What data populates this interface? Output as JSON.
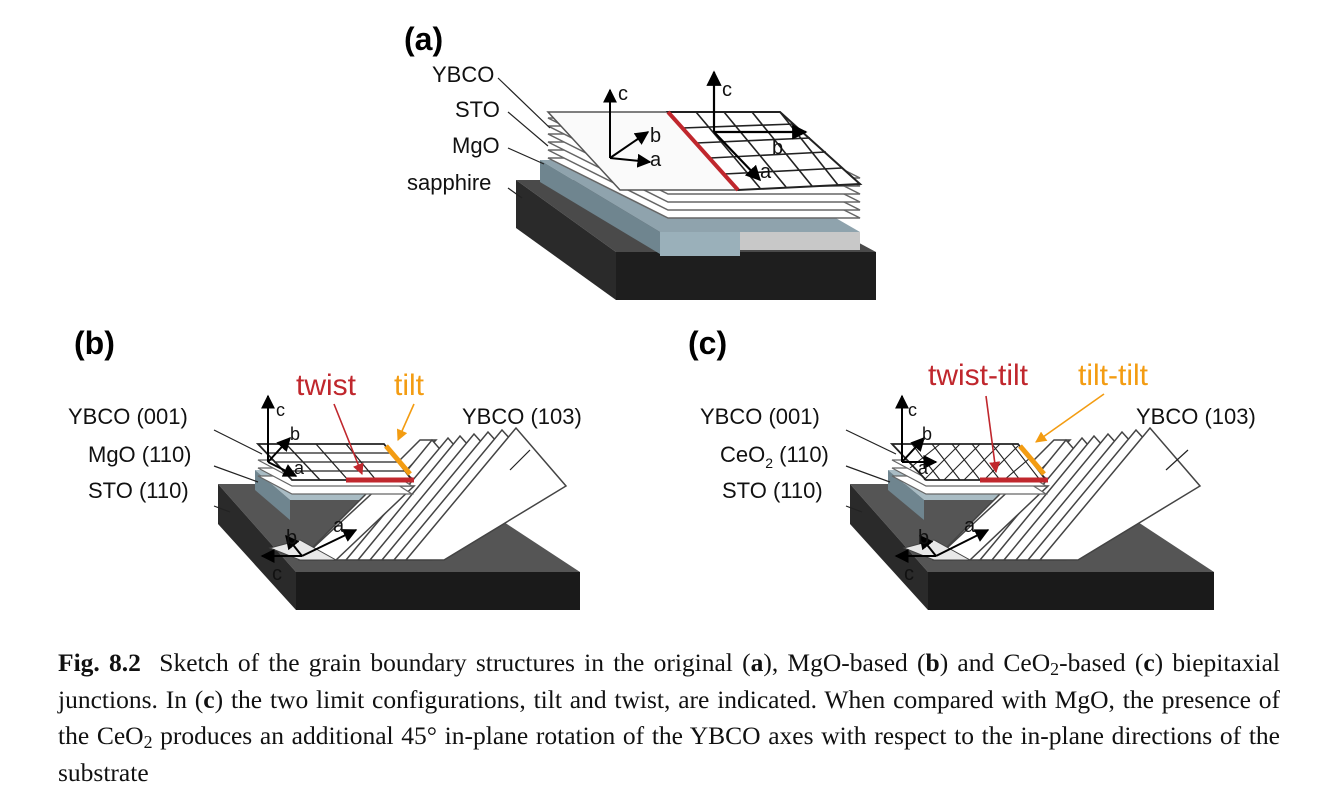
{
  "figure": {
    "panel_a": {
      "label": "(a)",
      "layers": [
        "YBCO",
        "STO",
        "MgO",
        "sapphire"
      ],
      "axes_left": {
        "c": "c",
        "b": "b",
        "a": "a"
      },
      "axes_right": {
        "c": "c",
        "b": "b",
        "a": "a"
      }
    },
    "panel_b": {
      "label": "(b)",
      "layers": [
        "YBCO (001)",
        "MgO (110)",
        "STO (110)"
      ],
      "right_label": "YBCO (103)",
      "boundary_twist": "twist",
      "boundary_tilt": "tilt",
      "axes_top": {
        "c": "c",
        "b": "b",
        "a": "a"
      },
      "axes_bottom": {
        "b": "b",
        "a": "a",
        "c": "c"
      }
    },
    "panel_c": {
      "label": "(c)",
      "layers": [
        "YBCO (001)",
        "CeO",
        "2",
        " (110)",
        "STO (110)"
      ],
      "right_label": "YBCO (103)",
      "boundary_twist": "twist-tilt",
      "boundary_tilt": "tilt-tilt",
      "axes_top": {
        "c": "c",
        "b": "b",
        "a": "a"
      },
      "axes_bottom": {
        "b": "b",
        "a": "a",
        "c": "c"
      }
    },
    "colors": {
      "twist": "#c0272d",
      "tilt": "#f39c12",
      "substrate": "#333333"
    }
  },
  "caption": {
    "label": "Fig. 8.2",
    "t1": "Sketch of the grain boundary structures in the original (",
    "a": "a",
    "t2": "), MgO-based (",
    "b": "b",
    "t3": ") and CeO",
    "sub1": "2",
    "t4": "-based (",
    "c1": "c",
    "t5": ") biepitaxial junctions. In (",
    "c2": "c",
    "t6": ") the two limit configurations, tilt and twist, are indicated. When compared with MgO, the presence of the CeO",
    "sub2": "2",
    "t7": " produces an additional 45° in-plane rotation of the YBCO axes with respect to the in-plane directions of the substrate"
  }
}
